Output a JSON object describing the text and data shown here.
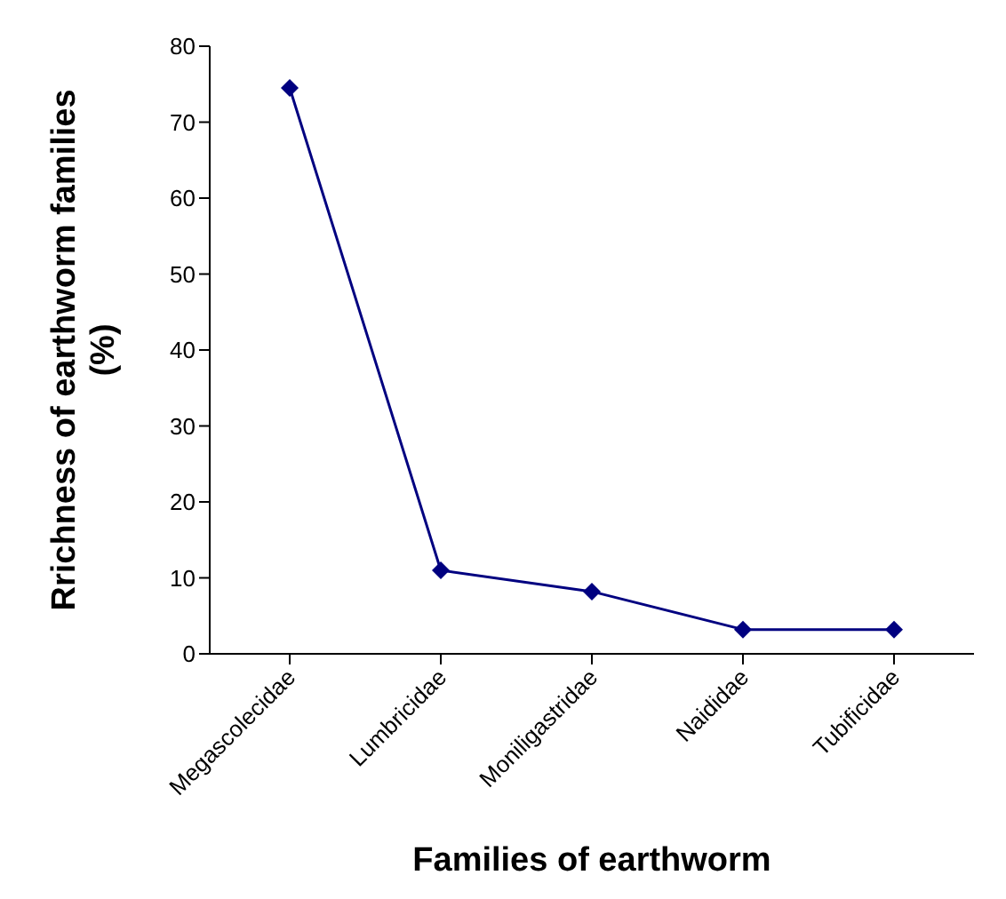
{
  "chart_data": {
    "type": "line",
    "xlabel": "Families of earthworm",
    "ylabel": "Rrichness of earthworm families (%)",
    "categories": [
      "Megascolecidae",
      "Lumbricidae",
      "Moniligastridae",
      "Naididae",
      "Tubificidae"
    ],
    "series": [
      {
        "color": "#000080",
        "values": [
          74.5,
          11,
          8.2,
          3.2,
          3.2
        ]
      }
    ],
    "ylim": [
      0,
      80
    ],
    "yticks": [
      0,
      10,
      20,
      30,
      40,
      50,
      60,
      70,
      80
    ],
    "grid": false,
    "marker": "diamond",
    "line_style": "solid"
  }
}
